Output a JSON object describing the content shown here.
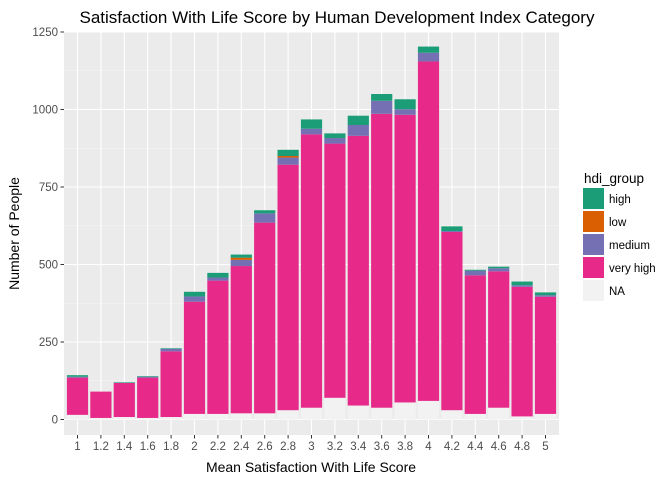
{
  "chart_data": {
    "type": "bar",
    "stacked": true,
    "title": "Satisfaction With Life Score by Human Development Index Category",
    "xlabel": "Mean Satisfaction With Life Score",
    "ylabel": "Number of People",
    "ylim": [
      -50,
      1250
    ],
    "yticks": [
      0,
      250,
      500,
      750,
      1000,
      1250
    ],
    "grid": true,
    "legend_position": "right",
    "legend_title": "hdi_group",
    "categories": [
      "1",
      "1.2",
      "1.4",
      "1.6",
      "1.8",
      "2",
      "2.2",
      "2.4",
      "2.6",
      "2.8",
      "3",
      "3.2",
      "3.4",
      "3.6",
      "3.8",
      "4",
      "4.2",
      "4.4",
      "4.6",
      "4.8",
      "5"
    ],
    "series": [
      {
        "name": "NA",
        "color": "#f2f2f2",
        "values": [
          15,
          5,
          8,
          5,
          8,
          18,
          18,
          20,
          20,
          30,
          38,
          70,
          45,
          38,
          55,
          60,
          30,
          18,
          38,
          10,
          18
        ]
      },
      {
        "name": "very high",
        "color": "#e7298a",
        "values": [
          120,
          85,
          110,
          130,
          212,
          362,
          430,
          475,
          615,
          792,
          882,
          820,
          870,
          948,
          928,
          1095,
          575,
          447,
          440,
          418,
          378
        ]
      },
      {
        "name": "medium",
        "color": "#7570b3",
        "values": [
          3,
          0,
          0,
          3,
          8,
          17,
          10,
          20,
          30,
          23,
          18,
          18,
          35,
          42,
          18,
          28,
          3,
          15,
          10,
          5,
          5
        ]
      },
      {
        "name": "low",
        "color": "#d95f02",
        "values": [
          0,
          0,
          0,
          0,
          0,
          0,
          0,
          7,
          0,
          5,
          0,
          0,
          0,
          0,
          0,
          0,
          0,
          0,
          0,
          0,
          0
        ]
      },
      {
        "name": "high",
        "color": "#1b9e77",
        "values": [
          5,
          0,
          2,
          2,
          2,
          15,
          15,
          10,
          10,
          20,
          30,
          15,
          30,
          22,
          32,
          20,
          15,
          3,
          5,
          12,
          9
        ]
      }
    ],
    "legend_order": [
      "high",
      "low",
      "medium",
      "very high",
      "NA"
    ]
  }
}
